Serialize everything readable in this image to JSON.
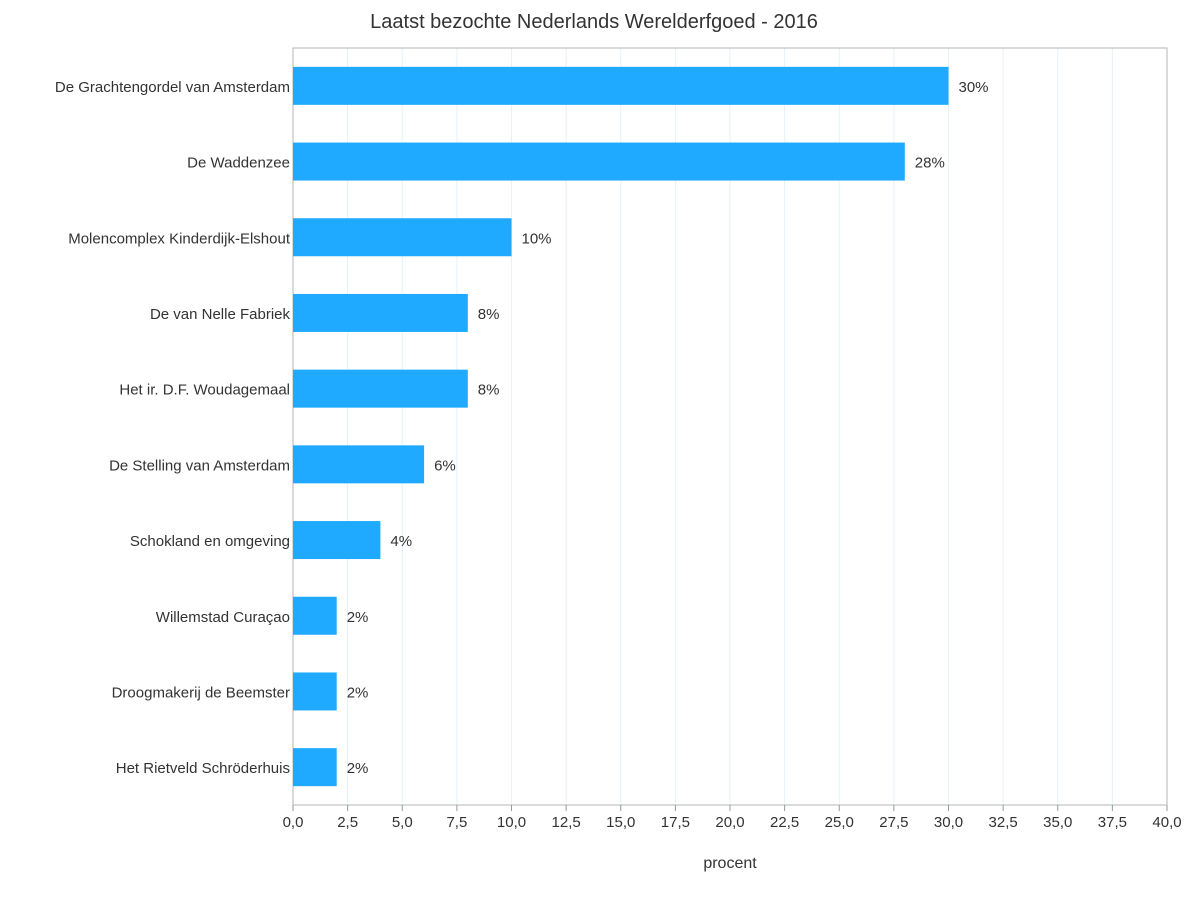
{
  "chart_data": {
    "type": "bar",
    "orientation": "horizontal",
    "title": "Laatst bezochte Nederlands Werelderfgoed - 2016",
    "xlabel": "procent",
    "ylabel": "",
    "xlim": [
      0,
      40
    ],
    "tick_step": 2.5,
    "ticks": [
      "0,0",
      "2,5",
      "5,0",
      "7,5",
      "10,0",
      "12,5",
      "15,0",
      "17,5",
      "20,0",
      "22,5",
      "25,0",
      "27,5",
      "30,0",
      "32,5",
      "35,0",
      "37,5",
      "40,0"
    ],
    "categories": [
      "De Grachtengordel van Amsterdam",
      "De Waddenzee",
      "Molencomplex Kinderdijk-Elshout",
      "De van Nelle Fabriek",
      "Het ir. D.F. Woudagemaal",
      "De Stelling van Amsterdam",
      "Schokland en omgeving",
      "Willemstad Curaçao",
      "Droogmakerij de Beemster",
      "Het Rietveld Schröderhuis"
    ],
    "values": [
      30,
      28,
      10,
      8,
      8,
      6,
      4,
      2,
      2,
      2
    ],
    "data_labels": [
      "30%",
      "28%",
      "10%",
      "8%",
      "8%",
      "6%",
      "4%",
      "2%",
      "2%",
      "2%"
    ],
    "bar_color": "#1faaff",
    "grid": true,
    "grid_color": "#e3f3f7",
    "legend": "none"
  }
}
